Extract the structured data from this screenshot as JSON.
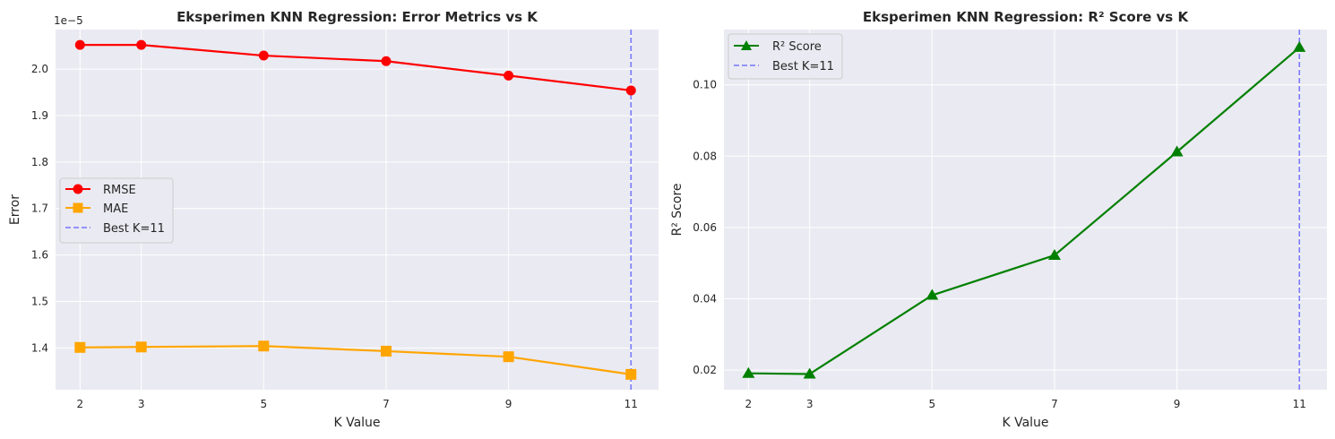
{
  "chart_data": [
    {
      "type": "line",
      "title": "Eksperimen KNN Regression: Error Metrics vs K",
      "xlabel": "K Value",
      "ylabel": "Error",
      "y_offset_label": "1e−5",
      "x": [
        2,
        3,
        5,
        7,
        9,
        11
      ],
      "x_ticks": [
        "2",
        "3",
        "5",
        "7",
        "9",
        "11"
      ],
      "xlim": [
        1.6,
        11.45
      ],
      "ylim": [
        1.31,
        2.085
      ],
      "y_ticks": [
        "1.4",
        "1.5",
        "1.6",
        "1.7",
        "1.8",
        "1.9",
        "2.0"
      ],
      "y_tick_values": [
        1.4,
        1.5,
        1.6,
        1.7,
        1.8,
        1.9,
        2.0
      ],
      "grid": true,
      "legend_position": "center-left",
      "series": [
        {
          "name": "RMSE",
          "values": [
            2.052,
            2.052,
            2.029,
            2.017,
            1.986,
            1.954
          ],
          "color": "#ff0000",
          "marker": "circle"
        },
        {
          "name": "MAE",
          "values": [
            1.401,
            1.402,
            1.404,
            1.393,
            1.381,
            1.343
          ],
          "color": "#ffa500",
          "marker": "square"
        }
      ],
      "reference_line": {
        "name": "Best K=11",
        "x": 11,
        "color": "#0000ff"
      }
    },
    {
      "type": "line",
      "title": "Eksperimen KNN Regression: R² Score vs K",
      "xlabel": "K Value",
      "ylabel": "R² Score",
      "x": [
        2,
        3,
        5,
        7,
        9,
        11
      ],
      "x_ticks": [
        "2",
        "3",
        "5",
        "7",
        "9",
        "11"
      ],
      "xlim": [
        1.6,
        11.45
      ],
      "ylim": [
        0.0145,
        0.1155
      ],
      "y_ticks": [
        "0.02",
        "0.04",
        "0.06",
        "0.08",
        "0.10"
      ],
      "y_tick_values": [
        0.02,
        0.04,
        0.06,
        0.08,
        0.1
      ],
      "grid": true,
      "legend_position": "top-left",
      "series": [
        {
          "name": "R² Score",
          "values": [
            0.0191,
            0.0189,
            0.041,
            0.0522,
            0.0812,
            0.1105
          ],
          "color": "#008000",
          "marker": "triangle"
        }
      ],
      "reference_line": {
        "name": "Best K=11",
        "x": 11,
        "color": "#0000ff"
      }
    }
  ]
}
